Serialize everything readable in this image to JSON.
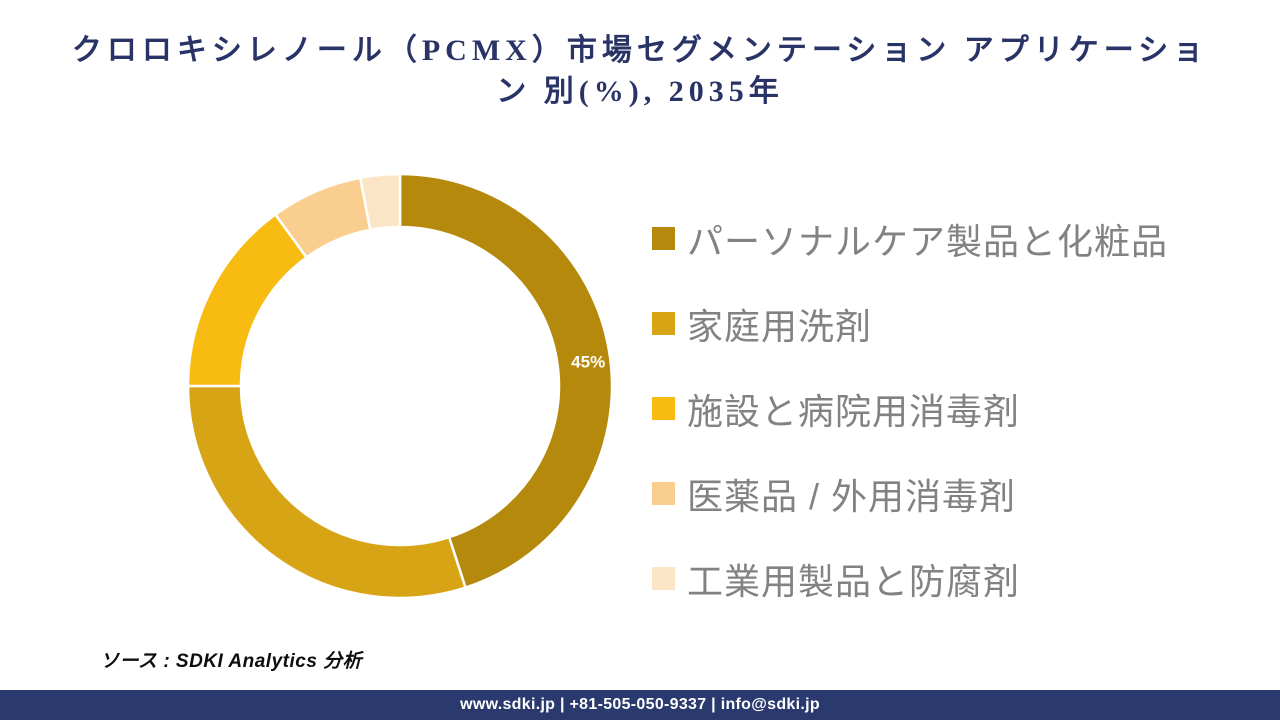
{
  "header": {
    "title_line1": "クロロキシレノール（PCMX）市場セグメンテーション アプリケーショ",
    "title_line2": "ン 別(%), 2035年",
    "title_color": "#293366"
  },
  "chart_data": {
    "type": "pie",
    "subtype": "donut",
    "title": "クロロキシレノール（PCMX）市場セグメンテーション アプリケーション 別(%), 2035年",
    "year": "2035年",
    "unit": "%",
    "categories": [
      "パーソナルケア製品と化粧品",
      "家庭用洗剤",
      "施設と病院用消毒剤",
      "医薬品 / 外用消毒剤",
      "工業用製品と防腐剤"
    ],
    "values": [
      45,
      30,
      15,
      7,
      3
    ],
    "colors": [
      "#B5890B",
      "#D6A414",
      "#F7BB12",
      "#F9CE8E",
      "#FBE5C6"
    ],
    "point_labels": [
      "45%",
      "",
      "",
      "",
      ""
    ],
    "start_angle_deg": 0,
    "direction": "clockwise",
    "donut_hole_ratio": 0.75,
    "segment_gap_color": "#ffffff",
    "legend_position": "right",
    "legend_text_color": "#828282"
  },
  "source": {
    "text": "ソース : SDKI Analytics 分析"
  },
  "footer": {
    "text": "www.sdki.jp | +81-505-050-9337 | info@sdki.jp",
    "bg_color": "#2B3A6E",
    "text_color": "#ffffff"
  }
}
